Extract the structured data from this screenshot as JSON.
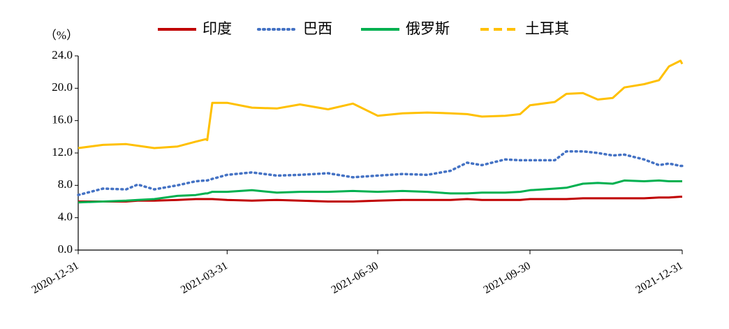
{
  "chart_data": {
    "type": "line",
    "y_label": "（%）",
    "x": [
      "2020-12-31",
      "2021-01-15",
      "2021-01-29",
      "2021-02-05",
      "2021-02-15",
      "2021-03-01",
      "2021-03-12",
      "2021-03-18",
      "2021-03-19",
      "2021-03-22",
      "2021-03-31",
      "2021-04-15",
      "2021-04-30",
      "2021-05-14",
      "2021-05-31",
      "2021-06-15",
      "2021-06-30",
      "2021-07-15",
      "2021-07-30",
      "2021-08-13",
      "2021-08-23",
      "2021-09-01",
      "2021-09-15",
      "2021-09-24",
      "2021-09-30",
      "2021-10-15",
      "2021-10-22",
      "2021-11-01",
      "2021-11-10",
      "2021-11-19",
      "2021-11-26",
      "2021-12-08",
      "2021-12-17",
      "2021-12-23",
      "2021-12-30",
      "2021-12-31"
    ],
    "series": [
      {
        "name": "印度",
        "color": "#c00000",
        "dash": "solid",
        "values": [
          6.0,
          6.0,
          6.0,
          6.1,
          6.1,
          6.2,
          6.3,
          6.3,
          6.3,
          6.3,
          6.2,
          6.1,
          6.2,
          6.1,
          6.0,
          6.0,
          6.1,
          6.2,
          6.2,
          6.2,
          6.3,
          6.2,
          6.2,
          6.2,
          6.3,
          6.3,
          6.3,
          6.4,
          6.4,
          6.4,
          6.4,
          6.4,
          6.5,
          6.5,
          6.6,
          6.6
        ]
      },
      {
        "name": "巴西",
        "color": "#4472c4",
        "dash": "dotted",
        "values": [
          6.8,
          7.6,
          7.5,
          8.1,
          7.5,
          8.0,
          8.5,
          8.6,
          8.6,
          8.8,
          9.3,
          9.6,
          9.2,
          9.3,
          9.5,
          9.0,
          9.2,
          9.4,
          9.3,
          9.8,
          10.8,
          10.5,
          11.2,
          11.1,
          11.1,
          11.1,
          12.2,
          12.2,
          12.0,
          11.7,
          11.8,
          11.2,
          10.5,
          10.7,
          10.4,
          10.4
        ]
      },
      {
        "name": "俄罗斯",
        "color": "#00b050",
        "dash": "solid",
        "values": [
          5.9,
          6.0,
          6.1,
          6.2,
          6.3,
          6.7,
          6.8,
          7.0,
          7.0,
          7.2,
          7.2,
          7.4,
          7.1,
          7.2,
          7.2,
          7.3,
          7.2,
          7.3,
          7.2,
          7.0,
          7.0,
          7.1,
          7.1,
          7.2,
          7.4,
          7.6,
          7.7,
          8.2,
          8.3,
          8.2,
          8.6,
          8.5,
          8.6,
          8.5,
          8.5,
          8.5
        ]
      },
      {
        "name": "土耳其",
        "color": "#ffc000",
        "dash": "dashed",
        "values": [
          12.6,
          13.0,
          13.1,
          12.9,
          12.6,
          12.8,
          13.4,
          13.7,
          13.6,
          18.2,
          18.2,
          17.6,
          17.5,
          18.0,
          17.4,
          18.1,
          16.6,
          16.9,
          17.0,
          16.9,
          16.8,
          16.5,
          16.6,
          16.8,
          17.9,
          18.3,
          19.3,
          19.4,
          18.6,
          18.8,
          20.1,
          20.5,
          21.0,
          22.7,
          23.4,
          23.0
        ]
      }
    ],
    "xlim": [
      "2020-12-31",
      "2021-12-31"
    ],
    "xticks": [
      "2020-12-31",
      "2021-03-31",
      "2021-06-30",
      "2021-09-30",
      "2021-12-31"
    ],
    "ylim": [
      0,
      24
    ],
    "yticks": [
      {
        "value": 0,
        "label": "0.0"
      },
      {
        "value": 4,
        "label": "4.0"
      },
      {
        "value": 8,
        "label": "8.0"
      },
      {
        "value": 12,
        "label": "12.0"
      },
      {
        "value": 16,
        "label": "16.0"
      },
      {
        "value": 20,
        "label": "20.0"
      },
      {
        "value": 24,
        "label": "24.0"
      }
    ],
    "legend": "top",
    "grid": false
  }
}
